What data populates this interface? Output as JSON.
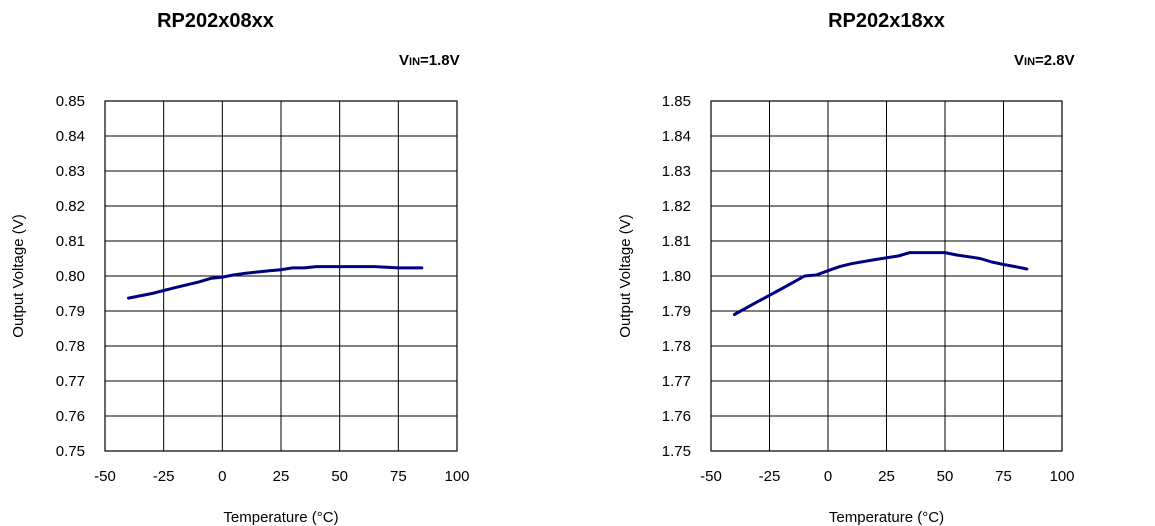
{
  "chart_data": [
    {
      "type": "line",
      "title": "RP202x08xx",
      "condition": {
        "prefix": "V",
        "subscript": "IN",
        "value": "=1.8V"
      },
      "xlabel": "Temperature (°C)",
      "ylabel": "Output Voltage (V)",
      "xlim": [
        -50,
        100
      ],
      "ylim": [
        0.75,
        0.85
      ],
      "x_ticks": [
        "-50",
        "-25",
        "0",
        "25",
        "50",
        "75",
        "100"
      ],
      "y_ticks": [
        "0.75",
        "0.76",
        "0.77",
        "0.78",
        "0.79",
        "0.80",
        "0.81",
        "0.82",
        "0.83",
        "0.84",
        "0.85"
      ],
      "grid": true,
      "series": [
        {
          "color": "#000080",
          "x": [
            -40,
            -30,
            -20,
            -10,
            -5,
            0,
            5,
            10,
            20,
            25,
            30,
            35,
            40,
            45,
            50,
            55,
            60,
            65,
            70,
            75,
            80,
            85
          ],
          "y": [
            0.7937,
            0.795,
            0.7967,
            0.7983,
            0.7993,
            0.7997,
            0.8003,
            0.8008,
            0.8015,
            0.8018,
            0.8023,
            0.8023,
            0.8027,
            0.8027,
            0.8027,
            0.8027,
            0.8027,
            0.8027,
            0.8025,
            0.8023,
            0.8023,
            0.8023
          ]
        }
      ]
    },
    {
      "type": "line",
      "title": "RP202x18xx",
      "condition": {
        "prefix": "V",
        "subscript": "IN",
        "value": "=2.8V"
      },
      "xlabel": "Temperature (°C)",
      "ylabel": "Output Voltage (V)",
      "xlim": [
        -50,
        100
      ],
      "ylim": [
        1.75,
        1.85
      ],
      "x_ticks": [
        "-50",
        "-25",
        "0",
        "25",
        "50",
        "75",
        "100"
      ],
      "y_ticks": [
        "1.75",
        "1.76",
        "1.77",
        "1.78",
        "1.79",
        "1.80",
        "1.81",
        "1.82",
        "1.83",
        "1.84",
        "1.85"
      ],
      "grid": true,
      "series": [
        {
          "color": "#000080",
          "x": [
            -40,
            -30,
            -20,
            -10,
            -5,
            0,
            5,
            10,
            20,
            30,
            35,
            40,
            45,
            50,
            55,
            60,
            65,
            70,
            75,
            80,
            85
          ],
          "y": [
            1.789,
            1.7927,
            1.7963,
            1.8,
            1.8003,
            1.8015,
            1.8027,
            1.8035,
            1.8047,
            1.8057,
            1.8067,
            1.8067,
            1.8067,
            1.8067,
            1.806,
            1.8055,
            1.805,
            1.804,
            1.8033,
            1.8027,
            1.802
          ]
        }
      ]
    }
  ]
}
